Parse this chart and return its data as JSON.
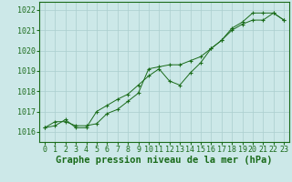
{
  "title": "Graphe pression niveau de la mer (hPa)",
  "background_color": "#cce8e8",
  "grid_color": "#aacece",
  "line_color": "#1a6b1a",
  "marker_color": "#1a6b1a",
  "xlim": [
    -0.5,
    23.5
  ],
  "ylim": [
    1015.5,
    1022.4
  ],
  "xticks": [
    0,
    1,
    2,
    3,
    4,
    5,
    6,
    7,
    8,
    9,
    10,
    11,
    12,
    13,
    14,
    15,
    16,
    17,
    18,
    19,
    20,
    21,
    22,
    23
  ],
  "yticks": [
    1016,
    1017,
    1018,
    1019,
    1020,
    1021,
    1022
  ],
  "line1_x": [
    0,
    1,
    2,
    3,
    4,
    5,
    6,
    7,
    8,
    9,
    10,
    11,
    12,
    13,
    14,
    15,
    16,
    17,
    18,
    19,
    20,
    21,
    22,
    23
  ],
  "line1_y": [
    1016.2,
    1016.5,
    1016.5,
    1016.3,
    1016.3,
    1016.4,
    1016.9,
    1017.1,
    1017.5,
    1017.9,
    1019.1,
    1019.2,
    1019.3,
    1019.3,
    1019.5,
    1019.7,
    1020.1,
    1020.5,
    1021.1,
    1021.4,
    1021.85,
    1021.85,
    1021.85,
    1021.5
  ],
  "line2_x": [
    0,
    1,
    2,
    3,
    4,
    5,
    6,
    7,
    8,
    9,
    10,
    11,
    12,
    13,
    14,
    15,
    16,
    17,
    18,
    19,
    20,
    21,
    22,
    23
  ],
  "line2_y": [
    1016.2,
    1016.3,
    1016.6,
    1016.2,
    1016.2,
    1017.0,
    1017.3,
    1017.6,
    1017.85,
    1018.3,
    1018.75,
    1019.1,
    1018.5,
    1018.3,
    1018.9,
    1019.4,
    1020.1,
    1020.5,
    1021.0,
    1021.3,
    1021.5,
    1021.5,
    1021.85,
    1021.5
  ],
  "title_color": "#1a6b1a",
  "title_fontsize": 7.5,
  "tick_fontsize": 6,
  "tick_color": "#1a6b1a",
  "spine_color": "#1a6b1a"
}
